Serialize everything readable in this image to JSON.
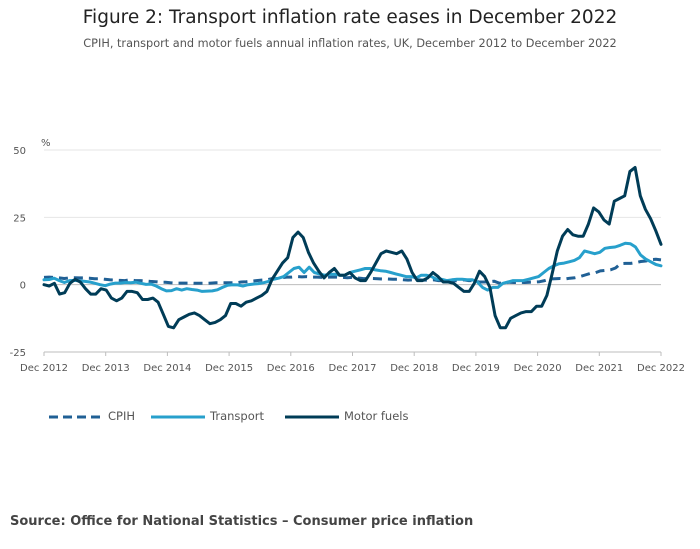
{
  "title": "Figure 2: Transport inflation rate eases in December 2022",
  "subtitle": "CPIH, transport and motor fuels annual inflation rates, UK, December 2012 to December 2022",
  "source": "Source: Office for National Statistics – Consumer price inflation",
  "chart_data": {
    "type": "line",
    "yunit": "%",
    "ylim": [
      -25,
      50
    ],
    "yticks": [
      50,
      25,
      0,
      -25
    ],
    "grid": true,
    "legend_position": "bottom-left",
    "x_tick_labels": [
      "Dec 2012",
      "Dec 2013",
      "Dec 2014",
      "Dec 2015",
      "Dec 2016",
      "Dec 2017",
      "Dec 2018",
      "Dec 2019",
      "Dec 2020",
      "Dec 2021",
      "Dec 2022"
    ],
    "x_start": "Dec 2012",
    "x_end": "Dec 2022",
    "frequency": "monthly",
    "series": [
      {
        "name": "CPIH",
        "color": "#206095",
        "style": "dashed",
        "values": [
          2.7,
          2.8,
          2.7,
          2.5,
          2.3,
          2.5,
          2.6,
          2.5,
          2.5,
          2.4,
          2.2,
          2.2,
          2.0,
          1.8,
          1.7,
          1.6,
          1.5,
          1.8,
          1.5,
          1.5,
          1.4,
          1.2,
          1.1,
          0.9,
          0.9,
          0.7,
          0.6,
          0.6,
          0.6,
          0.6,
          0.5,
          0.5,
          0.5,
          0.6,
          0.7,
          0.7,
          0.7,
          0.7,
          0.7,
          1.0,
          1.1,
          1.3,
          1.5,
          1.7,
          1.8,
          2.2,
          2.3,
          2.6,
          2.8,
          2.8,
          3.0,
          2.9,
          3.0,
          2.8,
          2.8,
          2.7,
          2.8,
          2.8,
          2.8,
          2.7,
          2.6,
          2.7,
          2.5,
          2.3,
          2.2,
          2.3,
          2.2,
          2.1,
          2.1,
          2.0,
          2.0,
          1.8,
          1.7,
          1.8,
          1.8,
          1.7,
          1.7,
          1.8,
          1.5,
          1.5,
          1.4,
          1.5,
          1.4,
          1.8,
          1.5,
          1.5,
          1.0,
          1.0,
          1.1,
          1.3,
          0.6,
          0.6,
          0.9,
          0.8,
          0.9,
          0.8,
          0.9,
          1.0,
          1.1,
          1.5,
          2.1,
          2.2,
          2.3,
          2.1,
          2.4,
          2.6,
          3.0,
          3.6,
          4.2,
          4.4,
          5.1,
          5.3,
          5.5,
          6.2,
          7.8,
          7.9,
          7.9,
          8.2,
          8.6,
          8.8,
          9.3,
          9.4,
          9.2
        ]
      },
      {
        "name": "Transport",
        "color": "#27a0cc",
        "style": "solid",
        "values": [
          1.8,
          1.9,
          2.4,
          1.5,
          0.8,
          1.5,
          1.6,
          1.4,
          1.2,
          1.0,
          0.5,
          0.0,
          -0.4,
          0.2,
          0.6,
          0.6,
          0.8,
          0.7,
          0.9,
          0.5,
          0.1,
          0.2,
          -0.5,
          -1.5,
          -2.3,
          -2.2,
          -1.5,
          -2.0,
          -1.5,
          -1.8,
          -2.0,
          -2.5,
          -2.4,
          -2.3,
          -1.9,
          -1.0,
          -0.2,
          0.0,
          -0.1,
          -0.5,
          0.0,
          0.2,
          0.4,
          0.7,
          1.2,
          2.0,
          2.4,
          3.0,
          4.5,
          6.0,
          6.5,
          4.5,
          6.5,
          4.5,
          4.0,
          3.5,
          3.8,
          3.9,
          3.5,
          3.5,
          4.5,
          5.0,
          5.5,
          6.0,
          6.0,
          5.5,
          5.2,
          5.0,
          4.5,
          4.0,
          3.5,
          3.0,
          3.0,
          2.5,
          3.5,
          3.5,
          3.0,
          2.0,
          2.0,
          1.5,
          1.8,
          2.0,
          2.0,
          1.8,
          1.8,
          1.0,
          -1.0,
          -2.0,
          -1.0,
          -1.0,
          0.5,
          1.0,
          1.5,
          1.5,
          1.5,
          2.0,
          2.5,
          3.0,
          4.5,
          6.0,
          7.0,
          7.8,
          8.0,
          8.5,
          9.0,
          10.0,
          12.5,
          12.0,
          11.5,
          12.0,
          13.5,
          13.8,
          14.0,
          14.6,
          15.4,
          15.2,
          14.0,
          11.0,
          9.5,
          8.5,
          7.5,
          7.0
        ]
      },
      {
        "name": "Motor fuels",
        "color": "#003c57",
        "style": "solid",
        "values": [
          0.0,
          -0.5,
          0.5,
          -3.5,
          -3.0,
          0.5,
          2.0,
          1.0,
          -1.5,
          -3.5,
          -3.5,
          -1.5,
          -2.0,
          -5.0,
          -6.0,
          -5.0,
          -2.5,
          -2.5,
          -3.0,
          -5.5,
          -5.5,
          -5.0,
          -6.5,
          -11.0,
          -15.5,
          -16.0,
          -13.0,
          -12.0,
          -11.0,
          -10.5,
          -11.5,
          -13.0,
          -14.5,
          -14.0,
          -13.0,
          -11.5,
          -7.0,
          -7.0,
          -8.0,
          -6.5,
          -6.0,
          -5.0,
          -4.0,
          -2.5,
          2.0,
          5.0,
          8.0,
          10.0,
          17.5,
          19.5,
          17.5,
          12.0,
          8.0,
          5.0,
          2.5,
          4.5,
          6.0,
          3.5,
          3.5,
          4.5,
          2.5,
          1.5,
          1.5,
          4.5,
          8.0,
          11.5,
          12.5,
          12.0,
          11.5,
          12.5,
          9.5,
          4.5,
          1.5,
          1.5,
          2.5,
          4.5,
          3.0,
          1.0,
          1.0,
          0.5,
          -1.0,
          -2.5,
          -2.5,
          0.5,
          5.0,
          3.0,
          -1.0,
          -11.5,
          -16.0,
          -16.0,
          -12.5,
          -11.5,
          -10.5,
          -10.0,
          -10.0,
          -8.0,
          -8.0,
          -4.0,
          4.0,
          12.5,
          18.0,
          20.5,
          18.5,
          18.0,
          18.0,
          22.5,
          28.5,
          27.0,
          24.0,
          22.5,
          31.0,
          32.0,
          33.0,
          42.0,
          43.5,
          33.0,
          28.0,
          24.5,
          20.0,
          15.0
        ]
      }
    ]
  }
}
